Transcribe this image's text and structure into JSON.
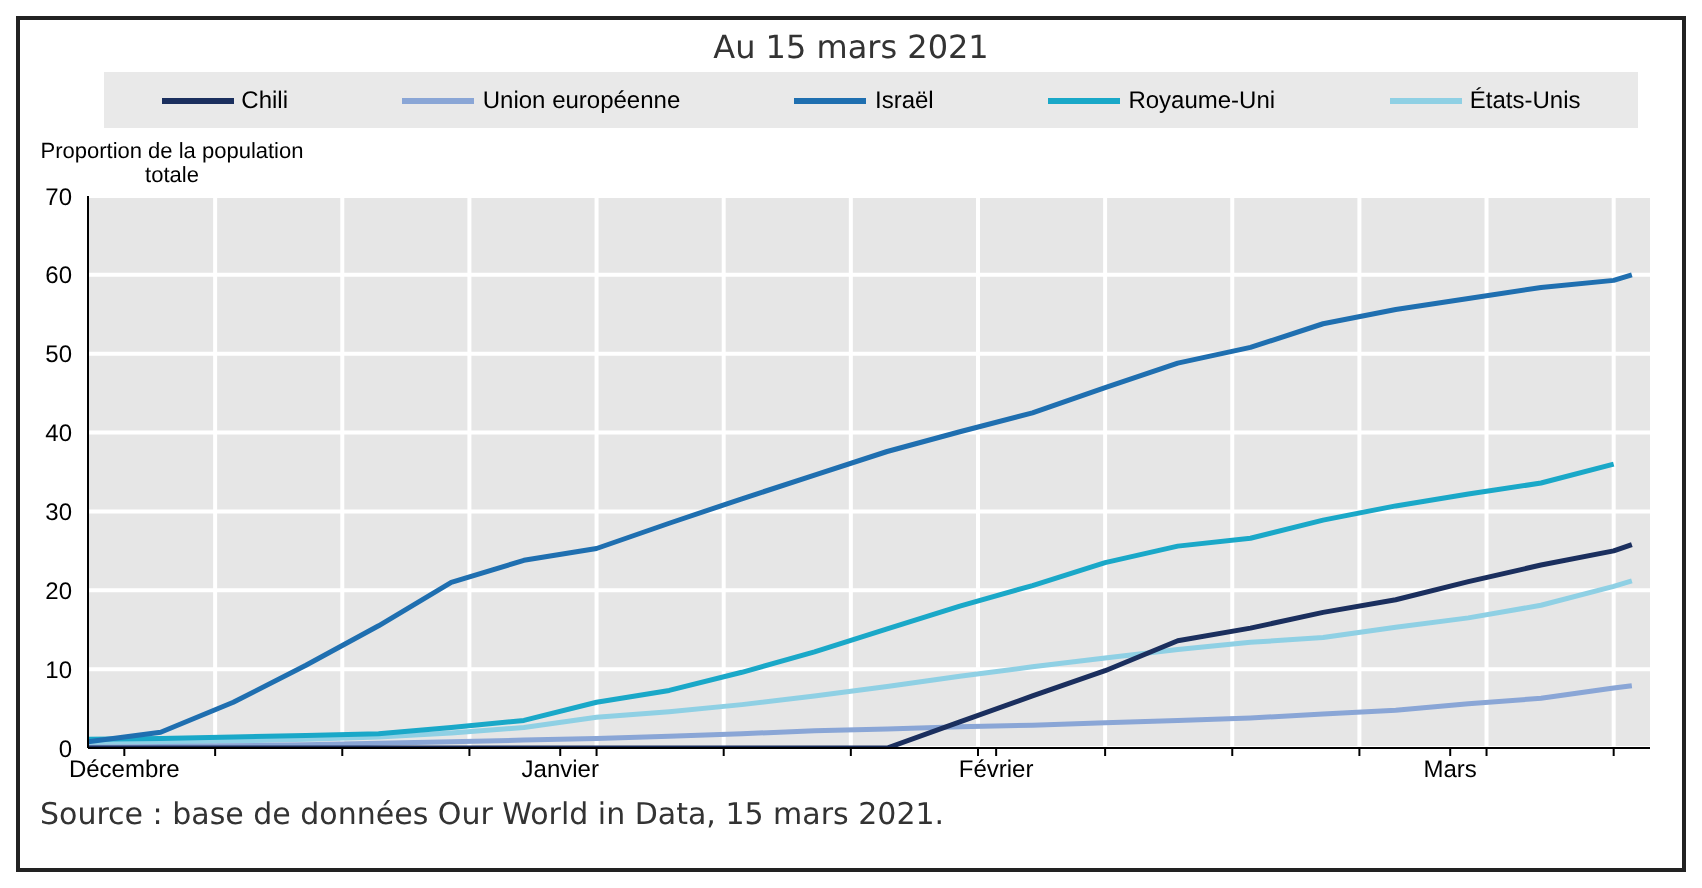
{
  "chart_data": {
    "type": "line",
    "title": "Au 15 mars 2021",
    "ylabel": "Proportion de la population totale",
    "annotations": [
      "Source : base de données Our World in Data, 15 mars 2021."
    ],
    "x": [
      "2020-12-18",
      "2020-12-22",
      "2020-12-26",
      "2020-12-30",
      "2021-01-03",
      "2021-01-07",
      "2021-01-11",
      "2021-01-15",
      "2021-01-19",
      "2021-01-23",
      "2021-01-27",
      "2021-01-31",
      "2021-02-04",
      "2021-02-08",
      "2021-02-12",
      "2021-02-16",
      "2021-02-20",
      "2021-02-24",
      "2021-02-28",
      "2021-03-04",
      "2021-03-08",
      "2021-03-12",
      "2021-03-13"
    ],
    "series": [
      {
        "name": "Chili",
        "color": "#1b2f5e",
        "values": [
          0,
          0,
          0,
          0,
          0,
          0,
          0,
          0,
          0,
          0,
          0,
          0,
          3.3,
          6.6,
          9.8,
          13.6,
          15.2,
          17.2,
          18.8,
          21.1,
          23.2,
          25,
          25.8
        ]
      },
      {
        "name": "Union européenne",
        "color": "#8aa6d6",
        "values": [
          0.1,
          0.2,
          0.3,
          0.4,
          0.6,
          0.8,
          1.0,
          1.2,
          1.5,
          1.8,
          2.2,
          2.4,
          2.7,
          2.9,
          3.2,
          3.5,
          3.8,
          4.3,
          4.8,
          5.6,
          6.3,
          7.6,
          7.9
        ]
      },
      {
        "name": "Israël",
        "color": "#1f6fb0",
        "values": [
          0.8,
          2.0,
          5.8,
          10.5,
          15.5,
          21,
          23.8,
          25.3,
          28.5,
          31.6,
          34.6,
          37.6,
          40.1,
          42.5,
          45.7,
          48.8,
          50.8,
          53.8,
          55.6,
          57,
          58.4,
          59.3,
          60
        ]
      },
      {
        "name": "Royaume-Uni",
        "color": "#1aa8c8",
        "values": [
          1.1,
          1.2,
          1.4,
          1.6,
          1.8,
          2.6,
          3.5,
          5.8,
          7.3,
          9.6,
          12.2,
          15.1,
          18,
          20.6,
          23.5,
          25.6,
          26.6,
          28.9,
          30.7,
          32.2,
          33.6,
          36,
          null
        ]
      },
      {
        "name": "États-Unis",
        "color": "#8fd0e4",
        "values": [
          0.7,
          0.8,
          0.9,
          1.1,
          1.4,
          1.9,
          2.6,
          3.9,
          4.6,
          5.5,
          6.6,
          7.8,
          9.1,
          10.3,
          11.4,
          12.5,
          13.4,
          14,
          15.3,
          16.5,
          18.1,
          20.5,
          21.2
        ]
      }
    ],
    "xlim": [
      "2020-12-18",
      "2021-03-14"
    ],
    "xticks": [
      {
        "value": "2020-12-20",
        "label": "Décembre"
      },
      {
        "value": "2020-12-25",
        "label": null
      },
      {
        "value": "2021-01-01",
        "label": null
      },
      {
        "value": "2021-01-08",
        "label": null
      },
      {
        "value": "2021-01-13",
        "label": "Janvier"
      },
      {
        "value": "2021-01-15",
        "label": null
      },
      {
        "value": "2021-01-22",
        "label": null
      },
      {
        "value": "2021-01-29",
        "label": null
      },
      {
        "value": "2021-02-05",
        "label": null
      },
      {
        "value": "2021-02-06",
        "label": "Février"
      },
      {
        "value": "2021-02-12",
        "label": null
      },
      {
        "value": "2021-02-19",
        "label": null
      },
      {
        "value": "2021-02-26",
        "label": null
      },
      {
        "value": "2021-03-03",
        "label": "Mars"
      },
      {
        "value": "2021-03-05",
        "label": null
      },
      {
        "value": "2021-03-12",
        "label": null
      }
    ],
    "ylim": [
      0,
      70
    ],
    "yticks": [
      0,
      10,
      20,
      30,
      40,
      50,
      60,
      70
    ],
    "grid": true,
    "legend": "top",
    "marker": "none",
    "line_style": "solid"
  }
}
